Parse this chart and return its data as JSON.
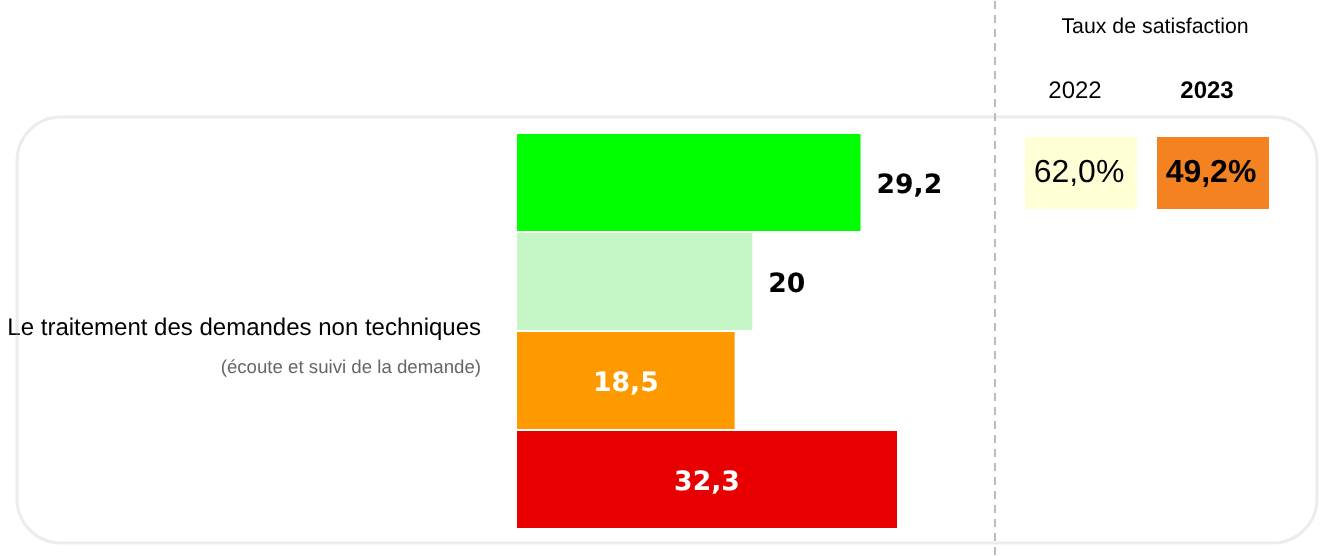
{
  "chart_data": {
    "type": "bar",
    "orientation": "horizontal",
    "categories": [
      null,
      null,
      null,
      null
    ],
    "values": [
      29.2,
      20,
      18.5,
      32.3
    ],
    "colors": [
      "#00ff00",
      "#c6f5c6",
      "#ff9900",
      "#e80000"
    ],
    "value_labels": [
      "29,2",
      "20",
      "18,5",
      "32,3"
    ],
    "annotations": [
      "Le traitement des demandes non techniques",
      "(écoute et suivi de la demande)",
      "Taux de satisfaction",
      "2022",
      "2023",
      "62,0%",
      "49,2%"
    ]
  }
}
